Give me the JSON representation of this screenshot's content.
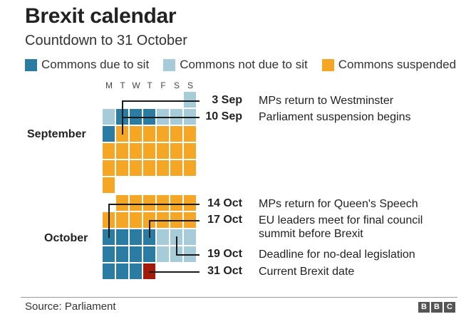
{
  "title": "Brexit calendar",
  "subtitle": "Countdown to 31 October",
  "colors": {
    "sit": "#2a7ca3",
    "not_sit": "#a6ccd9",
    "suspended": "#f5a624",
    "brexit": "#a51b0b",
    "connector": "#1a1a1a"
  },
  "legend": [
    {
      "label": "Commons due to sit",
      "color": "#2a7ca3"
    },
    {
      "label": "Commons not due to sit",
      "color": "#a6ccd9"
    },
    {
      "label": "Commons suspended",
      "color": "#f5a624"
    }
  ],
  "weekdays": [
    "M",
    "T",
    "W",
    "T",
    "F",
    "S",
    "S"
  ],
  "chart_data": {
    "type": "table",
    "months": [
      {
        "name": "September",
        "first_weekday": 7,
        "days": 30,
        "status": [
          "not_sit",
          "not_sit",
          "sit",
          "sit",
          "sit",
          "not_sit",
          "not_sit",
          "not_sit",
          "sit",
          "suspended",
          "suspended",
          "suspended",
          "suspended",
          "suspended",
          "suspended",
          "suspended",
          "suspended",
          "suspended",
          "suspended",
          "suspended",
          "suspended",
          "suspended",
          "suspended",
          "suspended",
          "suspended",
          "suspended",
          "suspended",
          "suspended",
          "suspended",
          "suspended"
        ]
      },
      {
        "name": "October",
        "first_weekday": 2,
        "days": 31,
        "status": [
          "suspended",
          "suspended",
          "suspended",
          "suspended",
          "suspended",
          "suspended",
          "suspended",
          "suspended",
          "suspended",
          "suspended",
          "suspended",
          "suspended",
          "suspended",
          "sit",
          "sit",
          "sit",
          "sit",
          "not_sit",
          "not_sit",
          "not_sit",
          "sit",
          "sit",
          "sit",
          "sit",
          "not_sit",
          "not_sit",
          "not_sit",
          "sit",
          "sit",
          "sit",
          "brexit"
        ]
      }
    ],
    "events": [
      {
        "month": 0,
        "day": 3,
        "date": "3 Sep",
        "description": "MPs return to Westminster"
      },
      {
        "month": 0,
        "day": 10,
        "date": "10 Sep",
        "description": "Parliament suspension begins"
      },
      {
        "month": 1,
        "day": 14,
        "date": "14 Oct",
        "description": "MPs return for Queen's Speech"
      },
      {
        "month": 1,
        "day": 17,
        "date": "17 Oct",
        "description": "EU leaders meet for final council summit before Brexit"
      },
      {
        "month": 1,
        "day": 19,
        "date": "19 Oct",
        "description": "Deadline for no-deal legislation"
      },
      {
        "month": 1,
        "day": 31,
        "date": "31 Oct",
        "description": "Current Brexit date"
      }
    ]
  },
  "source": "Source: Parliament",
  "logo_text": [
    "B",
    "B",
    "C"
  ]
}
